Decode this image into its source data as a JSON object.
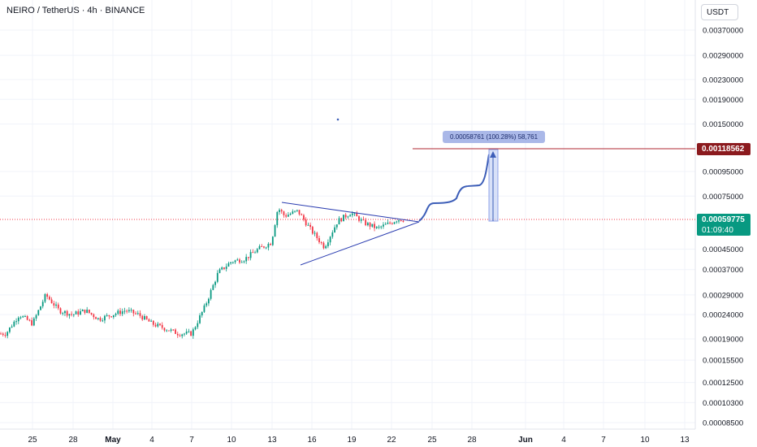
{
  "header": {
    "title": "NEIRO / TetherUS · 4h · BINANCE",
    "currency": "USDT"
  },
  "colors": {
    "up": "#089981",
    "down": "#f23645",
    "target_line": "#b22833",
    "current_tag": "#089981",
    "target_tag": "#8b1a1e",
    "pattern_line": "#2a3cb0",
    "projection": "#3d5eb8"
  },
  "price_tags": {
    "target": "0.00118562",
    "current_price": "0.00059775",
    "countdown": "01:09:40"
  },
  "measure": {
    "label": "0.00058761 (100.28%) 58,761"
  },
  "chart_data": {
    "type": "candlestick",
    "symbol": "NEIRO / TetherUS",
    "interval": "4h",
    "exchange": "BINANCE",
    "y_scale": "log",
    "y_ticks": [
      "0.00370000",
      "0.00290000",
      "0.00230000",
      "0.00190000",
      "0.00150000",
      "0.00095000",
      "0.00075000",
      "0.00045000",
      "0.00037000",
      "0.00029000",
      "0.00024000",
      "0.00019000",
      "0.00015500",
      "0.00012500",
      "0.00010300",
      "0.00008500"
    ],
    "x_ticks": [
      "25",
      "28",
      "May",
      "4",
      "7",
      "10",
      "13",
      "16",
      "19",
      "22",
      "25",
      "28",
      "Jun",
      "4",
      "7",
      "10",
      "13"
    ],
    "price_path": [
      [
        "Apr 23",
        0.0002
      ],
      [
        "Apr 24",
        0.00024
      ],
      [
        "Apr 25",
        0.00022
      ],
      [
        "Apr 26",
        0.00029
      ],
      [
        "Apr 27",
        0.00025
      ],
      [
        "Apr 28",
        0.00024
      ],
      [
        "Apr 29",
        0.00025
      ],
      [
        "Apr 30",
        0.00023
      ],
      [
        "May 1",
        0.00024
      ],
      [
        "May 2",
        0.00025
      ],
      [
        "May 3",
        0.00024
      ],
      [
        "May 4",
        0.00022
      ],
      [
        "May 5",
        0.00021
      ],
      [
        "May 6",
        0.0002
      ],
      [
        "May 7",
        0.0002
      ],
      [
        "May 8",
        0.00026
      ],
      [
        "May 9",
        0.00036
      ],
      [
        "May 10",
        0.0004
      ],
      [
        "May 11",
        0.00041
      ],
      [
        "May 12",
        0.00045
      ],
      [
        "May 13",
        0.00048
      ],
      [
        "May 13.5",
        0.00067
      ],
      [
        "May 14",
        0.00062
      ],
      [
        "May 15",
        0.00065
      ],
      [
        "May 16",
        0.00054
      ],
      [
        "May 17",
        0.00046
      ],
      [
        "May 18",
        0.00059
      ],
      [
        "May 19",
        0.00064
      ],
      [
        "May 20",
        0.00058
      ],
      [
        "May 21",
        0.00055
      ],
      [
        "May 22",
        0.00058
      ],
      [
        "May 22.5",
        0.0006
      ]
    ],
    "current_price": 0.00059775,
    "target_price": 0.00118562,
    "measured_move": "0.00058761 (100.28%) 58,761"
  }
}
